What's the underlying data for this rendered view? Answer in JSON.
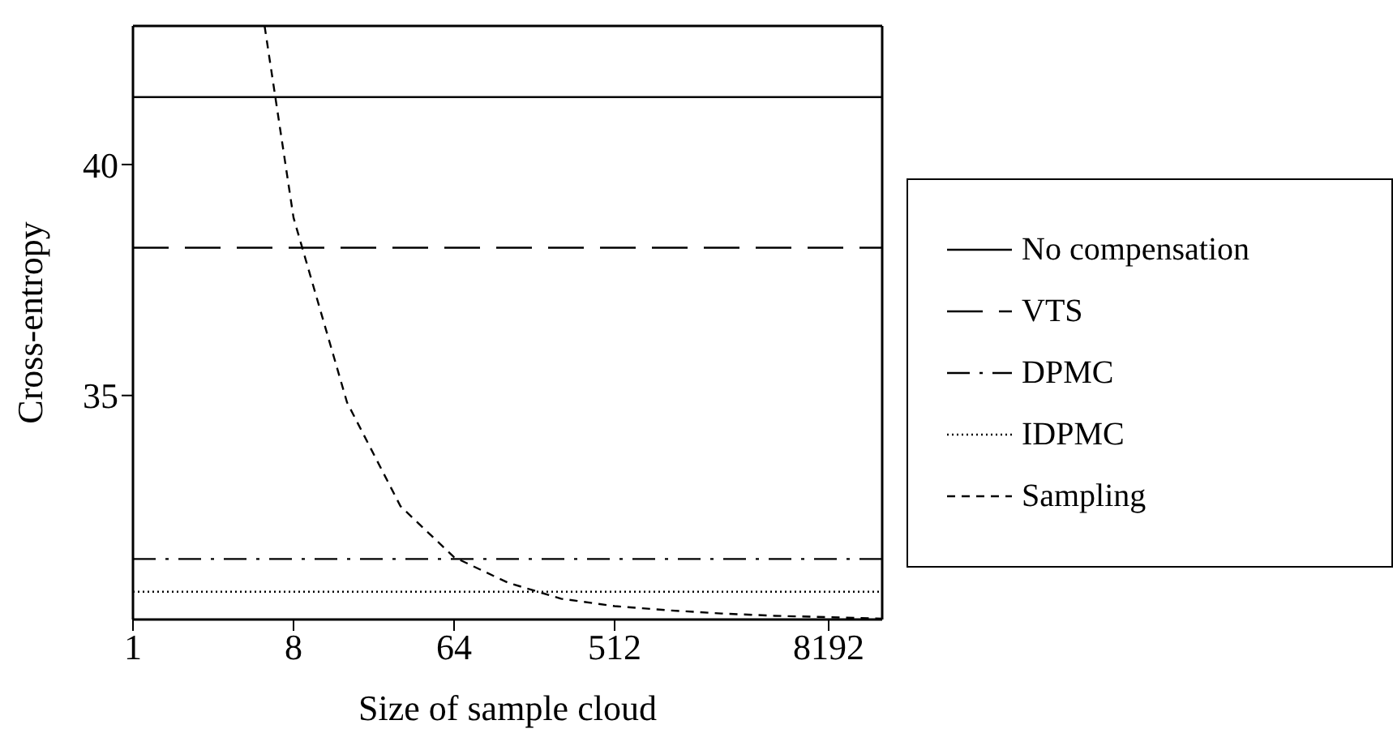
{
  "chart_data": {
    "type": "line",
    "xlabel": "Size of sample cloud",
    "ylabel": "Cross-entropy",
    "log": "x",
    "xlim": [
      1,
      16384
    ],
    "xticks": [
      1,
      8,
      64,
      512,
      8192
    ],
    "ylim": [
      30.15,
      43
    ],
    "yticks": [
      35,
      40
    ],
    "grid": false,
    "legend": "right",
    "marker": "none",
    "series": [
      {
        "name": "No compensation",
        "color": "#000000",
        "line_style": "solid",
        "x": [
          1,
          16384
        ],
        "values": [
          41.46,
          41.46
        ]
      },
      {
        "name": "VTS",
        "color": "#000000",
        "line_style": "long_dashed",
        "x": [
          1,
          16384
        ],
        "values": [
          38.2,
          38.2
        ]
      },
      {
        "name": "DPMC",
        "color": "#000000",
        "line_style": "dash_dot",
        "x": [
          1,
          16384
        ],
        "values": [
          31.46,
          31.46
        ]
      },
      {
        "name": "IDPMC",
        "color": "#000000",
        "line_style": "dotted",
        "x": [
          1,
          16384
        ],
        "values": [
          30.75,
          30.75
        ]
      },
      {
        "name": "Sampling",
        "color": "#000000",
        "line_style": "dashed",
        "x": [
          5.5,
          8,
          16,
          32,
          64,
          128,
          256,
          512,
          1024,
          2048,
          4096,
          8192,
          16384
        ],
        "values": [
          43,
          38.85,
          34.85,
          32.6,
          31.5,
          30.95,
          30.6,
          30.44,
          30.35,
          30.28,
          30.23,
          30.2,
          30.17
        ]
      }
    ]
  }
}
